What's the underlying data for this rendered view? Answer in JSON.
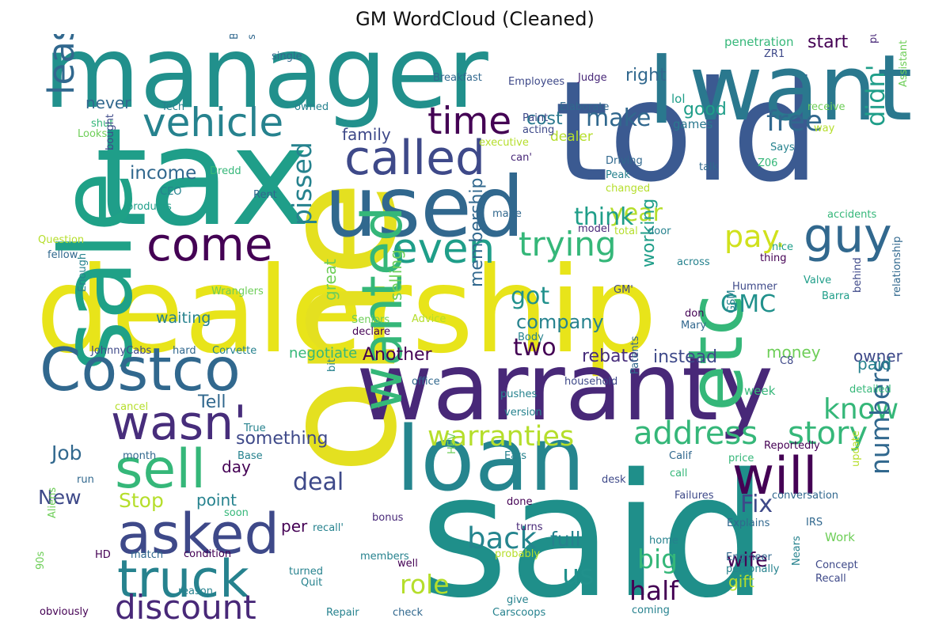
{
  "title": "GM WordCloud (Cleaned)",
  "palette": [
    "#440154",
    "#482878",
    "#3e4989",
    "#31688e",
    "#26828e",
    "#1f9e89",
    "#35b779",
    "#6ece58",
    "#b5de2b",
    "#e8e41a"
  ],
  "words": [
    {
      "text": "dealership",
      "color": "#e8e41a"
    },
    {
      "text": "said",
      "color": "#1f8f8a"
    },
    {
      "text": "one",
      "color": "#e4e020"
    },
    {
      "text": "told",
      "color": "#3b5a91"
    },
    {
      "text": "tax",
      "color": "#1f9e89"
    },
    {
      "text": "manager",
      "color": "#21908c"
    },
    {
      "text": "warranty",
      "color": "#482878"
    },
    {
      "text": "I",
      "color": "#2a788e"
    },
    {
      "text": "want",
      "color": "#2a788e"
    },
    {
      "text": "sale",
      "color": "#1fa187"
    },
    {
      "text": "used",
      "color": "#31688e"
    },
    {
      "text": "loan",
      "color": "#25858e"
    },
    {
      "text": "Costco",
      "color": "#31688e"
    },
    {
      "text": "etc",
      "color": "#35b779"
    },
    {
      "text": "wanted",
      "color": "#35b779"
    },
    {
      "text": "will",
      "color": "#440154"
    },
    {
      "text": "asked",
      "color": "#3e4989"
    },
    {
      "text": "truck",
      "color": "#26828e"
    },
    {
      "text": "wasn'",
      "color": "#472d7b"
    },
    {
      "text": "come",
      "color": "#440154"
    },
    {
      "text": "sell",
      "color": "#35b779"
    },
    {
      "text": "vehicle",
      "color": "#26828e"
    },
    {
      "text": "called",
      "color": "#3e4989"
    },
    {
      "text": "guy",
      "color": "#31688e"
    },
    {
      "text": "even",
      "color": "#1f9e89"
    },
    {
      "text": "time",
      "color": "#440154"
    },
    {
      "text": "discount",
      "color": "#482878"
    },
    {
      "text": "trying",
      "color": "#35b779"
    },
    {
      "text": "lease",
      "color": "#31688e"
    },
    {
      "text": "pay.",
      "color": "#d0e11c"
    },
    {
      "text": "address",
      "color": "#35b779"
    },
    {
      "text": "story",
      "color": "#35b779"
    },
    {
      "text": "warranties",
      "color": "#b5de2b"
    },
    {
      "text": "free",
      "color": "#31688e"
    },
    {
      "text": "didn'",
      "color": "#1f9e89"
    },
    {
      "text": "know",
      "color": "#35b779"
    },
    {
      "text": "half",
      "color": "#440154"
    },
    {
      "text": "back",
      "color": "#25858e"
    },
    {
      "text": "numbers",
      "color": "#31688e"
    },
    {
      "text": "big",
      "color": "#35b779"
    },
    {
      "text": "role",
      "color": "#b5de2b"
    },
    {
      "text": "pissed",
      "color": "#26828e"
    },
    {
      "text": "got",
      "color": "#21918c"
    },
    {
      "text": "two",
      "color": "#440154"
    },
    {
      "text": "deal",
      "color": "#3e4989"
    },
    {
      "text": "make",
      "color": "#31688e"
    },
    {
      "text": "year",
      "color": "#b5de2b"
    },
    {
      "text": "think",
      "color": "#1f9e89"
    },
    {
      "text": "GMC",
      "color": "#21918c"
    },
    {
      "text": "company",
      "color": "#26828e"
    },
    {
      "text": "Fix",
      "color": "#3e4989"
    },
    {
      "text": "us",
      "color": "#21918c"
    },
    {
      "text": "wife",
      "color": "#440154"
    },
    {
      "text": "full",
      "color": "#26828e"
    },
    {
      "text": "Stop",
      "color": "#b5de2b"
    },
    {
      "text": "Job",
      "color": "#31688e"
    },
    {
      "text": "New",
      "color": "#3e4989"
    },
    {
      "text": "income",
      "color": "#31688e"
    },
    {
      "text": "Tell",
      "color": "#31688e"
    },
    {
      "text": "something",
      "color": "#3e4989"
    },
    {
      "text": "instead",
      "color": "#3e4989"
    },
    {
      "text": "rebate",
      "color": "#472d7b"
    },
    {
      "text": "Another",
      "color": "#440154"
    },
    {
      "text": "membership",
      "color": "#31688e"
    },
    {
      "text": "working",
      "color": "#1f9e89"
    },
    {
      "text": "cost",
      "color": "#2a788e"
    },
    {
      "text": "good",
      "color": "#1f9e89"
    },
    {
      "text": "right",
      "color": "#31688e"
    },
    {
      "text": "start",
      "color": "#440154"
    },
    {
      "text": "never",
      "color": "#31688e"
    },
    {
      "text": "owner",
      "color": "#3e4989"
    },
    {
      "text": "paid",
      "color": "#26828e"
    },
    {
      "text": "money",
      "color": "#6ece58"
    },
    {
      "text": "gift",
      "color": "#b5de2b"
    },
    {
      "text": "point",
      "color": "#26828e"
    },
    {
      "text": "family",
      "color": "#3e4989"
    },
    {
      "text": "day",
      "color": "#440154"
    },
    {
      "text": "per",
      "color": "#440154"
    },
    {
      "text": "selling",
      "color": "#6ece58"
    },
    {
      "text": "great",
      "color": "#6ece58"
    },
    {
      "text": "waiting",
      "color": "#26828e"
    },
    {
      "text": "negotiate",
      "color": "#35b779"
    },
    {
      "text": "Work",
      "color": "#6ece58"
    },
    {
      "text": "week",
      "color": "#35b779"
    },
    {
      "text": "dealer",
      "color": "#b5de2b"
    },
    {
      "text": "lol",
      "color": "#1f9e89"
    },
    {
      "text": "games",
      "color": "#2a788e"
    },
    {
      "text": "penetration",
      "color": "#35b779"
    },
    {
      "text": "ZR1",
      "color": "#3e4989"
    },
    {
      "text": "Breakfast",
      "color": "#31688e"
    },
    {
      "text": "Employees",
      "color": "#3e4989"
    },
    {
      "text": "Judge",
      "color": "#482878"
    },
    {
      "text": "Tech",
      "color": "#26828e"
    },
    {
      "text": "Elaborate",
      "color": "#31688e"
    },
    {
      "text": "Paint",
      "color": "#3e4989"
    },
    {
      "text": "acting",
      "color": "#3e4989"
    },
    {
      "text": "executive",
      "color": "#b5de2b"
    },
    {
      "text": "Driving",
      "color": "#31688e"
    },
    {
      "text": "Peak",
      "color": "#26828e"
    },
    {
      "text": "changed",
      "color": "#b5de2b"
    },
    {
      "text": "can'",
      "color": "#482878"
    },
    {
      "text": "talk",
      "color": "#31688e"
    },
    {
      "text": "Says",
      "color": "#26828e"
    },
    {
      "text": "Z06",
      "color": "#35b779"
    },
    {
      "text": "receive",
      "color": "#6ece58"
    },
    {
      "text": "way",
      "color": "#b5de2b"
    },
    {
      "text": "Assistant",
      "color": "#6ece58"
    },
    {
      "text": "pushed",
      "color": "#482878"
    },
    {
      "text": "Broncos",
      "color": "#31688e"
    },
    {
      "text": "specialist",
      "color": "#31688e"
    },
    {
      "text": "single",
      "color": "#31688e"
    },
    {
      "text": "owned",
      "color": "#26828e"
    },
    {
      "text": "shut",
      "color": "#35b779"
    },
    {
      "text": "Looks",
      "color": "#6ece58"
    },
    {
      "text": "Dredd",
      "color": "#35b779"
    },
    {
      "text": "CEO",
      "color": "#26828e"
    },
    {
      "text": "Rent",
      "color": "#31688e"
    },
    {
      "text": "products",
      "color": "#1f9e89"
    },
    {
      "text": "made",
      "color": "#31688e"
    },
    {
      "text": "bought",
      "color": "#3e4989"
    },
    {
      "text": "model",
      "color": "#482878"
    },
    {
      "text": "total",
      "color": "#b5de2b"
    },
    {
      "text": "door",
      "color": "#26828e"
    },
    {
      "text": "nice",
      "color": "#1f9e89"
    },
    {
      "text": "accidents",
      "color": "#35b779"
    },
    {
      "text": "Question",
      "color": "#b5de2b"
    },
    {
      "text": "fellow",
      "color": "#31688e"
    },
    {
      "text": "across",
      "color": "#26828e"
    },
    {
      "text": "thing",
      "color": "#440154"
    },
    {
      "text": "Wranglers",
      "color": "#6ece58"
    },
    {
      "text": "Enough",
      "color": "#26828e"
    },
    {
      "text": "Seniors",
      "color": "#6ece58"
    },
    {
      "text": "declare",
      "color": "#440154"
    },
    {
      "text": "Advice",
      "color": "#b5de2b"
    },
    {
      "text": "Body",
      "color": "#26828e"
    },
    {
      "text": "GM'",
      "color": "#3e4989"
    },
    {
      "text": "Hummer",
      "color": "#3e4989"
    },
    {
      "text": "Valve",
      "color": "#1f9e89"
    },
    {
      "text": "Barra",
      "color": "#1f9e89"
    },
    {
      "text": "behind",
      "color": "#3e4989"
    },
    {
      "text": "relationship",
      "color": "#31688e"
    },
    {
      "text": "don",
      "color": "#440154"
    },
    {
      "text": "Mary",
      "color": "#31688e"
    },
    {
      "text": "GSM",
      "color": "#26828e"
    },
    {
      "text": "JohnnyCabs",
      "color": "#3e4989"
    },
    {
      "text": "hard",
      "color": "#31688e"
    },
    {
      "text": "Corvette",
      "color": "#26828e"
    },
    {
      "text": "C8",
      "color": "#3e4989"
    },
    {
      "text": "bit",
      "color": "#26828e"
    },
    {
      "text": "office",
      "color": "#31688e"
    },
    {
      "text": "household",
      "color": "#3e4989"
    },
    {
      "text": "pushes",
      "color": "#26828e"
    },
    {
      "text": "version",
      "color": "#26828e"
    },
    {
      "text": "detailed",
      "color": "#35b779"
    },
    {
      "text": "cancel",
      "color": "#b5de2b"
    },
    {
      "text": "Patents",
      "color": "#31688e"
    },
    {
      "text": "Reportedly",
      "color": "#440154"
    },
    {
      "text": "True",
      "color": "#26828e"
    },
    {
      "text": "HEV",
      "color": "#6ece58"
    },
    {
      "text": "Calif",
      "color": "#31688e"
    },
    {
      "text": "price",
      "color": "#35b779"
    },
    {
      "text": "update",
      "color": "#b5de2b"
    },
    {
      "text": "month",
      "color": "#31688e"
    },
    {
      "text": "Base",
      "color": "#26828e"
    },
    {
      "text": "Eats",
      "color": "#26828e"
    },
    {
      "text": "call",
      "color": "#35b779"
    },
    {
      "text": "desk",
      "color": "#3e4989"
    },
    {
      "text": "run",
      "color": "#31688e"
    },
    {
      "text": "Failures",
      "color": "#3e4989"
    },
    {
      "text": "conversation",
      "color": "#31688e"
    },
    {
      "text": "soon",
      "color": "#35b779"
    },
    {
      "text": "done",
      "color": "#440154"
    },
    {
      "text": "turns",
      "color": "#482878"
    },
    {
      "text": "Explains",
      "color": "#31688e"
    },
    {
      "text": "recall'",
      "color": "#26828e"
    },
    {
      "text": "bonus",
      "color": "#482878"
    },
    {
      "text": "IRS",
      "color": "#31688e"
    },
    {
      "text": "Aliens",
      "color": "#6ece58"
    },
    {
      "text": "HD",
      "color": "#440154"
    },
    {
      "text": "match",
      "color": "#31688e"
    },
    {
      "text": "condition",
      "color": "#440154"
    },
    {
      "text": "members",
      "color": "#26828e"
    },
    {
      "text": "probably",
      "color": "#b5de2b"
    },
    {
      "text": "home",
      "color": "#26828e"
    },
    {
      "text": "Engineer",
      "color": "#31688e"
    },
    {
      "text": "personally",
      "color": "#26828e"
    },
    {
      "text": "Concept",
      "color": "#3e4989"
    },
    {
      "text": "Recall",
      "color": "#3e4989"
    },
    {
      "text": "90s",
      "color": "#6ece58"
    },
    {
      "text": "Quit",
      "color": "#26828e"
    },
    {
      "text": "turned",
      "color": "#26828e"
    },
    {
      "text": "well",
      "color": "#440154"
    },
    {
      "text": "reason",
      "color": "#26828e"
    },
    {
      "text": "give",
      "color": "#26828e"
    },
    {
      "text": "Nears",
      "color": "#26828e"
    },
    {
      "text": "obviously",
      "color": "#440154"
    },
    {
      "text": "Repair",
      "color": "#26828e"
    },
    {
      "text": "check",
      "color": "#31688e"
    },
    {
      "text": "Carscoops",
      "color": "#26828e"
    },
    {
      "text": "coming",
      "color": "#26828e"
    }
  ]
}
